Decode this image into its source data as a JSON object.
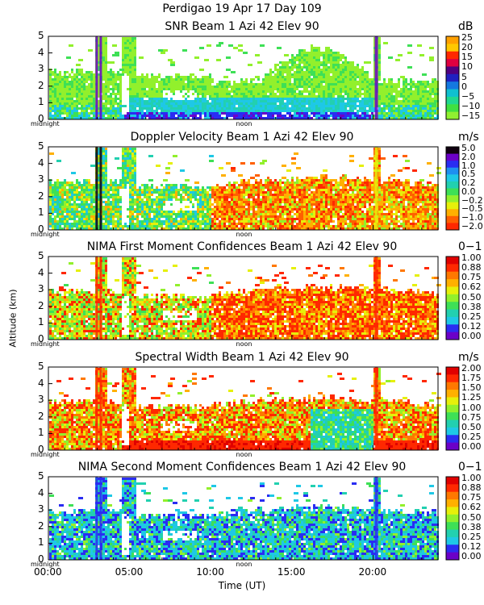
{
  "suptitle": "Perdigao  19 Apr 17 Day 109",
  "ylabel": "Altitude (km)",
  "xlabel": "Time (UT)",
  "x_ticks": [
    "00:00",
    "05:00",
    "10:00",
    "15:00",
    "20:00"
  ],
  "tick_midnight": "midnight",
  "tick_noon": "noon",
  "colors": {
    "purple": "#6b00c8",
    "blue": "#2a2cf2",
    "cyan": "#1ec8e6",
    "teal": "#22d0b0",
    "green": "#3ee056",
    "lime": "#92f02c",
    "yellow": "#e6f00a",
    "orange": "#ff9a00",
    "red": "#ff2800",
    "darkred": "#e00000",
    "black": "#100010"
  },
  "chart_data": [
    {
      "type": "heatmap",
      "title": "SNR Beam 1 Azi  42 Elev 90",
      "unit": "dB",
      "xlabel": "Time (UT)",
      "ylabel": "Altitude (km)",
      "xlim": [
        0,
        24
      ],
      "ylim": [
        0,
        5
      ],
      "y_ticks": [
        "0",
        "1",
        "2",
        "3",
        "4",
        "5"
      ],
      "colorbar_labels": [
        "25",
        "20",
        "15",
        "10",
        "5",
        "0",
        "−5",
        "−10",
        "−15"
      ],
      "colorbar_colors": [
        "#ffa000",
        "#ffc800",
        "#ff2800",
        "#e00040",
        "#500080",
        "#2020c0",
        "#1478e0",
        "#10c0d0",
        "#20d890",
        "#40e040",
        "#90f030"
      ],
      "regimes": [
        {
          "time": [
            0.1,
            4.5
          ],
          "altitude": [
            0,
            3.0
          ],
          "value": "-15 to -10"
        },
        {
          "time": [
            4.5,
            20
          ],
          "altitude": [
            0,
            1.5
          ],
          "value": "-10 to 5"
        },
        {
          "time": [
            13,
            20
          ],
          "altitude": [
            0,
            3.5
          ],
          "value": "-15 to -5"
        },
        {
          "time": [
            16,
            17
          ],
          "altitude": [
            0,
            0.8
          ],
          "value": "0 to 10"
        }
      ]
    },
    {
      "type": "heatmap",
      "title": "Doppler Velocity Beam 1 Azi  42 Elev 90",
      "unit": "m/s",
      "xlabel": "Time (UT)",
      "ylabel": "Altitude (km)",
      "xlim": [
        0,
        24
      ],
      "ylim": [
        0,
        5
      ],
      "y_ticks": [
        "0",
        "1",
        "2",
        "3",
        "4",
        "5"
      ],
      "colorbar_labels": [
        "5.0",
        "2.0",
        "1.0",
        "0.5",
        "0.2",
        "0.0",
        "−0.2",
        "−0.5",
        "−1.0",
        "−2.0"
      ],
      "colorbar_colors": [
        "#100010",
        "#6b00c8",
        "#2a2cf2",
        "#1e90f0",
        "#1ec8e6",
        "#22d0b0",
        "#3ee056",
        "#92f02c",
        "#e6f00a",
        "#ffb000",
        "#ff6000",
        "#ff2800"
      ],
      "regimes": [
        {
          "time": [
            0.1,
            4.5
          ],
          "altitude": [
            0,
            3.0
          ],
          "value": "-0.5 to 0.2"
        },
        {
          "time": [
            10,
            24
          ],
          "altitude": [
            0,
            3.0
          ],
          "value": "-2.0 to -0.5"
        }
      ]
    },
    {
      "type": "heatmap",
      "title": "NIMA First Moment Confidences Beam 1 Azi  42 Elev 90",
      "unit": "0−1",
      "xlabel": "Time (UT)",
      "ylabel": "Altitude (km)",
      "xlim": [
        0,
        24
      ],
      "ylim": [
        0,
        5
      ],
      "y_ticks": [
        "0",
        "1",
        "2",
        "3",
        "4",
        "5"
      ],
      "colorbar_labels": [
        "1.00",
        "0.88",
        "0.75",
        "0.62",
        "0.50",
        "0.38",
        "0.25",
        "0.12",
        "0.00"
      ],
      "colorbar_colors": [
        "#e00000",
        "#ff2800",
        "#ff7800",
        "#ffb000",
        "#e6f00a",
        "#92f02c",
        "#3ee056",
        "#22d0b0",
        "#1ec8e6",
        "#2a2cf2",
        "#6b00c8"
      ],
      "regimes": [
        {
          "time": [
            0.1,
            10
          ],
          "altitude": [
            0,
            3.0
          ],
          "value": "0.50 to 0.88"
        },
        {
          "time": [
            10,
            24
          ],
          "altitude": [
            0,
            3.0
          ],
          "value": "0.75 to 1.00"
        }
      ]
    },
    {
      "type": "heatmap",
      "title": "Spectral Width Beam 1 Azi  42 Elev 90",
      "unit": "m/s",
      "xlabel": "Time (UT)",
      "ylabel": "Altitude (km)",
      "xlim": [
        0,
        24
      ],
      "ylim": [
        0,
        5
      ],
      "y_ticks": [
        "0",
        "1",
        "2",
        "3",
        "4",
        "5"
      ],
      "colorbar_labels": [
        "2.00",
        "1.75",
        "1.50",
        "1.25",
        "1.00",
        "0.75",
        "0.50",
        "0.25",
        "0.00"
      ],
      "colorbar_colors": [
        "#e00000",
        "#ff2800",
        "#ff7800",
        "#ffb000",
        "#e6f00a",
        "#92f02c",
        "#3ee056",
        "#22d0b0",
        "#1ec8e6",
        "#2a2cf2",
        "#6b00c8"
      ],
      "regimes": [
        {
          "time": [
            0.1,
            10
          ],
          "altitude": [
            0,
            3.0
          ],
          "value": "1.25 to 2.00"
        },
        {
          "time": [
            16,
            20
          ],
          "altitude": [
            0,
            2.5
          ],
          "value": "0.50 to 1.00"
        }
      ]
    },
    {
      "type": "heatmap",
      "title": "NIMA Second Moment Confidences Beam 1 Azi  42 Elev 90",
      "unit": "0−1",
      "xlabel": "Time (UT)",
      "ylabel": "Altitude (km)",
      "xlim": [
        0,
        24
      ],
      "ylim": [
        0,
        5
      ],
      "y_ticks": [
        "0",
        "1",
        "2",
        "3",
        "4",
        "5"
      ],
      "colorbar_labels": [
        "1.00",
        "0.88",
        "0.75",
        "0.62",
        "0.50",
        "0.38",
        "0.25",
        "0.12",
        "0.00"
      ],
      "colorbar_colors": [
        "#e00000",
        "#ff2800",
        "#ff7800",
        "#ffb000",
        "#e6f00a",
        "#92f02c",
        "#3ee056",
        "#22d0b0",
        "#1ec8e6",
        "#2a2cf2",
        "#6b00c8"
      ],
      "regimes": [
        {
          "time": [
            0.1,
            24
          ],
          "altitude": [
            0,
            3.0
          ],
          "value": "0.25 to 0.50"
        }
      ]
    }
  ]
}
